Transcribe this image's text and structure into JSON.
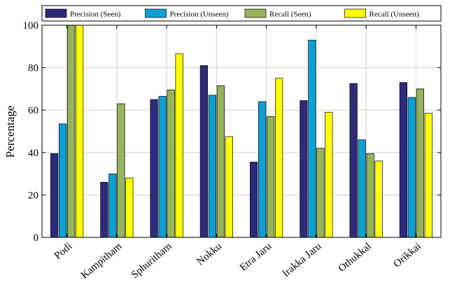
{
  "chart_data": {
    "type": "bar",
    "title": "",
    "xlabel": "",
    "ylabel": "Percentage",
    "ylim": [
      0,
      100
    ],
    "yticks": [
      0,
      20,
      40,
      60,
      80,
      100
    ],
    "grid": true,
    "legend_position": "top",
    "categories": [
      "Podi",
      "Kampitham",
      "Sphuritham",
      "Nokku",
      "Etra Jaru",
      "Irakka Jaru",
      "Othukkal",
      "Orikkai"
    ],
    "series": [
      {
        "name": "Precision (Seen)",
        "color": "#2e2b7b",
        "values": [
          39.5,
          26,
          65,
          81,
          35.5,
          64.5,
          72.5,
          73
        ]
      },
      {
        "name": "Precision (Unseen)",
        "color": "#0e9fd4",
        "values": [
          53.5,
          30,
          66.5,
          67,
          64,
          93,
          46,
          66
        ]
      },
      {
        "name": "Recall (Seen)",
        "color": "#96b45a",
        "values": [
          100,
          63,
          69.5,
          71.5,
          57,
          42,
          39.5,
          70
        ]
      },
      {
        "name": "Recall (Unseen)",
        "color": "#ffff00",
        "values": [
          100,
          28,
          86.5,
          47.5,
          75,
          59,
          36,
          58.5
        ]
      }
    ]
  }
}
